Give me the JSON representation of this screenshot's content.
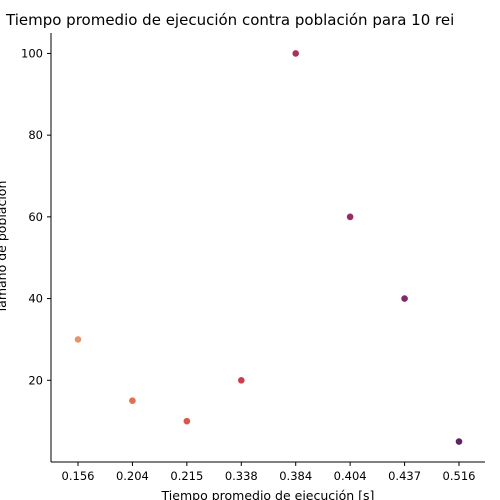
{
  "chart_data": {
    "type": "scatter",
    "title": "Tiempo promedio de ejecución contra población para 10 rei",
    "xlabel": "Tiempo promedio de ejecución [s]",
    "ylabel": "Tamaño de población",
    "x_categories": [
      "0.156",
      "0.204",
      "0.215",
      "0.338",
      "0.384",
      "0.404",
      "0.437",
      "0.516"
    ],
    "ylim": [
      0,
      105
    ],
    "yticks": [
      20,
      40,
      60,
      80,
      100
    ],
    "grid": false,
    "points": [
      {
        "x": "0.156",
        "y": 30,
        "color": "#e8946a"
      },
      {
        "x": "0.204",
        "y": 15,
        "color": "#e0704f"
      },
      {
        "x": "0.215",
        "y": 10,
        "color": "#d9584b"
      },
      {
        "x": "0.338",
        "y": 20,
        "color": "#cc3e4c"
      },
      {
        "x": "0.384",
        "y": 100,
        "color": "#a8315d"
      },
      {
        "x": "0.404",
        "y": 60,
        "color": "#962c66"
      },
      {
        "x": "0.437",
        "y": 40,
        "color": "#7e2a6c"
      },
      {
        "x": "0.516",
        "y": 5,
        "color": "#5e2466"
      }
    ]
  }
}
